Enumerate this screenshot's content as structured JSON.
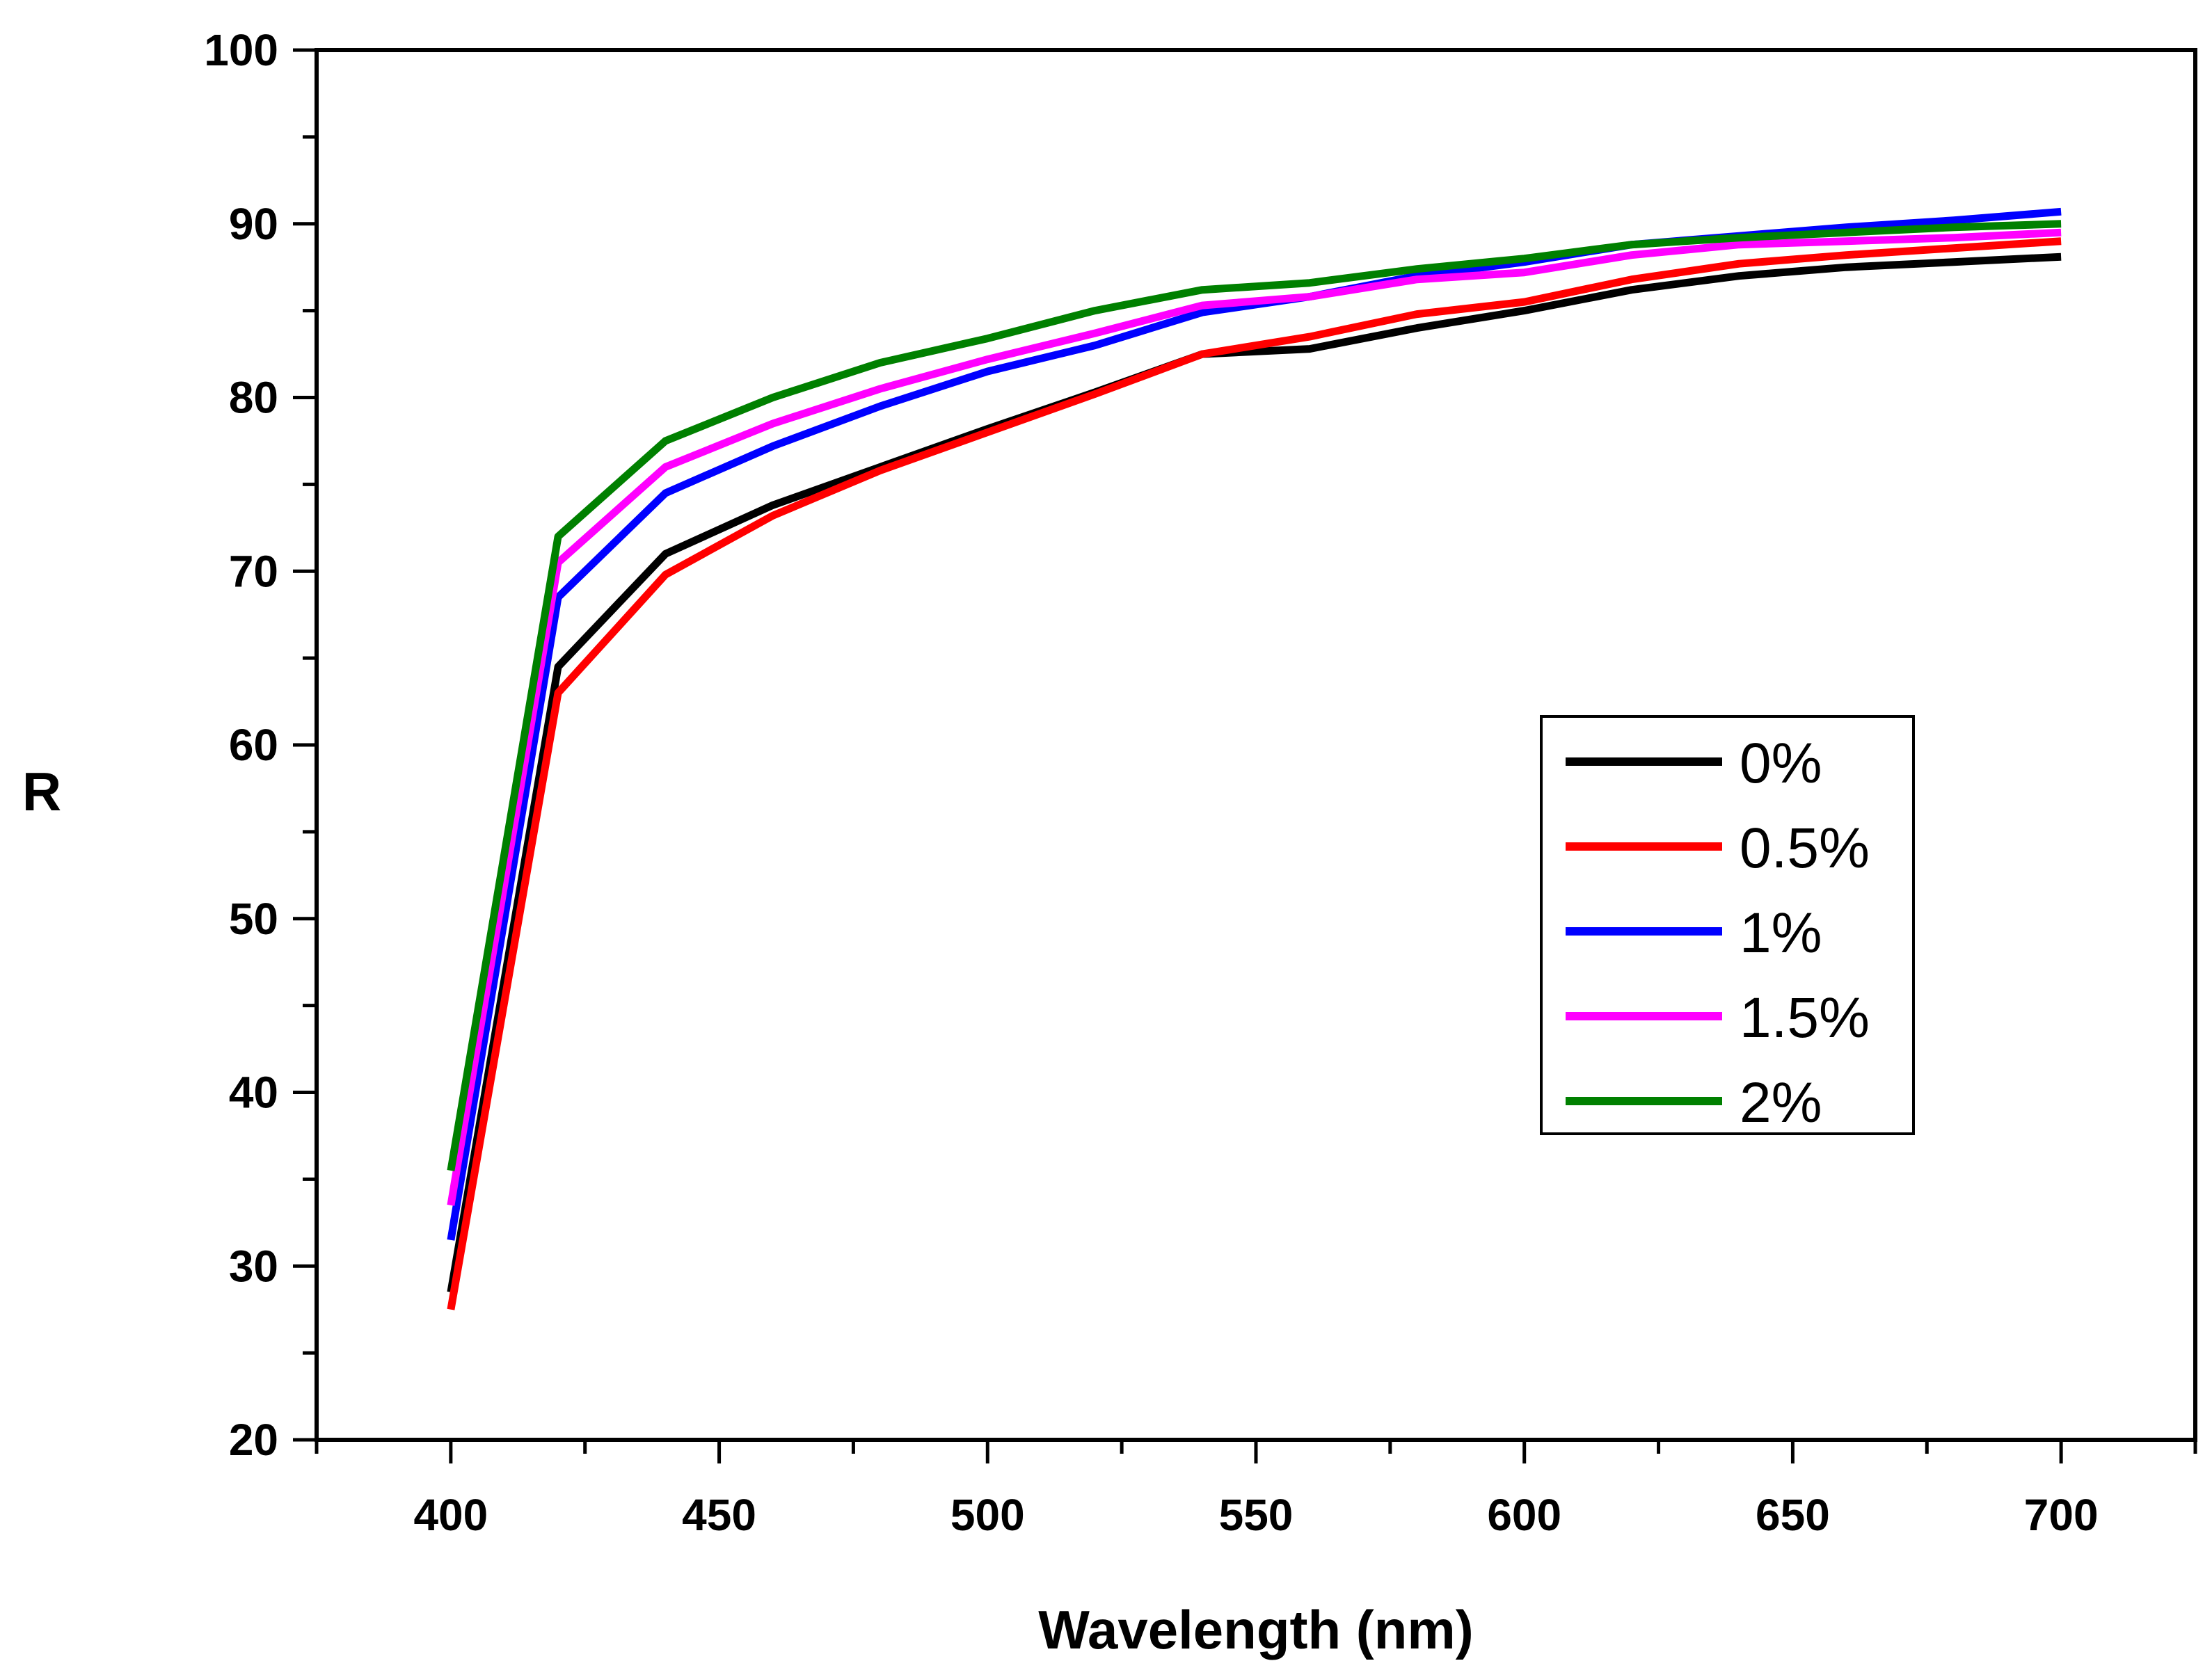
{
  "chart_data": {
    "type": "line",
    "title": "",
    "xlabel": "Wavelength (nm)",
    "ylabel": "R",
    "xlim": [
      375,
      725
    ],
    "ylim": [
      20,
      100
    ],
    "xticks": [
      400,
      450,
      500,
      550,
      600,
      650,
      700
    ],
    "yticks": [
      20,
      30,
      40,
      50,
      60,
      70,
      80,
      90,
      100
    ],
    "grid": false,
    "legend_position": "center-right",
    "x": [
      400,
      420,
      440,
      460,
      480,
      500,
      520,
      540,
      560,
      580,
      600,
      620,
      640,
      660,
      680,
      700
    ],
    "series": [
      {
        "name": "0%",
        "color": "#000000",
        "values": [
          28.5,
          64.5,
          71.0,
          73.8,
          76.0,
          78.2,
          80.3,
          82.5,
          82.8,
          84.0,
          85.0,
          86.2,
          87.0,
          87.5,
          87.8,
          88.1
        ]
      },
      {
        "name": "0.5%",
        "color": "#ff0000",
        "values": [
          27.5,
          63.0,
          69.8,
          73.2,
          75.8,
          78.0,
          80.2,
          82.5,
          83.5,
          84.8,
          85.5,
          86.8,
          87.7,
          88.2,
          88.6,
          89.0
        ]
      },
      {
        "name": "1%",
        "color": "#0000ff",
        "values": [
          31.5,
          68.5,
          74.5,
          77.2,
          79.5,
          81.5,
          83.0,
          84.9,
          85.8,
          87.0,
          87.8,
          88.8,
          89.3,
          89.8,
          90.2,
          90.7
        ]
      },
      {
        "name": "1.5%",
        "color": "#ff00ff",
        "values": [
          33.5,
          70.5,
          76.0,
          78.5,
          80.5,
          82.2,
          83.7,
          85.3,
          85.8,
          86.8,
          87.2,
          88.2,
          88.8,
          89.0,
          89.2,
          89.5
        ]
      },
      {
        "name": "2%",
        "color": "#008000",
        "values": [
          35.5,
          72.0,
          77.5,
          80.0,
          82.0,
          83.4,
          85.0,
          86.2,
          86.6,
          87.4,
          88.0,
          88.8,
          89.2,
          89.5,
          89.8,
          90.0
        ]
      }
    ]
  }
}
